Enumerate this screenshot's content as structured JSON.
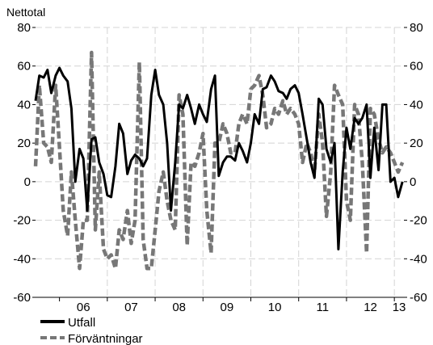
{
  "chart_data": {
    "type": "line",
    "ylabel": "Nettotal",
    "ylim": [
      -60,
      80
    ],
    "yticks": [
      "80",
      "60",
      "40",
      "20",
      "0",
      "-20",
      "-40",
      "-60"
    ],
    "xlim": [
      2005.5,
      2013.2
    ],
    "x_categories": [
      "06",
      "07",
      "08",
      "09",
      "10",
      "11",
      "12",
      "13"
    ],
    "grid": true,
    "legend_position": "bottom-left",
    "series": [
      {
        "name": "Utfall",
        "color": "#000000",
        "style": "solid",
        "x": [
          2005.5,
          2005.58,
          2005.67,
          2005.75,
          2005.83,
          2005.92,
          2006.0,
          2006.08,
          2006.17,
          2006.25,
          2006.33,
          2006.42,
          2006.5,
          2006.58,
          2006.67,
          2006.75,
          2006.83,
          2006.92,
          2007.0,
          2007.08,
          2007.17,
          2007.25,
          2007.33,
          2007.42,
          2007.5,
          2007.58,
          2007.67,
          2007.75,
          2007.83,
          2007.92,
          2008.0,
          2008.08,
          2008.17,
          2008.25,
          2008.33,
          2008.42,
          2008.5,
          2008.58,
          2008.67,
          2008.75,
          2008.83,
          2008.92,
          2009.0,
          2009.08,
          2009.17,
          2009.25,
          2009.33,
          2009.42,
          2009.5,
          2009.58,
          2009.67,
          2009.75,
          2009.83,
          2009.92,
          2010.0,
          2010.08,
          2010.17,
          2010.25,
          2010.33,
          2010.42,
          2010.5,
          2010.58,
          2010.67,
          2010.75,
          2010.83,
          2010.92,
          2011.0,
          2011.08,
          2011.17,
          2011.25,
          2011.33,
          2011.42,
          2011.5,
          2011.58,
          2011.67,
          2011.75,
          2011.83,
          2011.92,
          2012.0,
          2012.08,
          2012.17,
          2012.25,
          2012.33,
          2012.42,
          2012.5,
          2012.58,
          2012.67,
          2012.75,
          2012.83,
          2012.92,
          2013.0,
          2013.08,
          2013.17
        ],
        "values": [
          42,
          55,
          54,
          58,
          46,
          55,
          59,
          55,
          52,
          38,
          0,
          17,
          12,
          -15,
          22,
          23,
          10,
          4,
          -7,
          -8,
          8,
          30,
          25,
          4,
          11,
          14,
          12,
          8,
          12,
          45,
          58,
          45,
          40,
          20,
          -15,
          10,
          40,
          38,
          45,
          38,
          30,
          40,
          35,
          31,
          48,
          55,
          3,
          10,
          13,
          13,
          11,
          20,
          16,
          10,
          20,
          35,
          30,
          48,
          49,
          55,
          52,
          47,
          46,
          43,
          48,
          50,
          46,
          35,
          22,
          10,
          2,
          43,
          40,
          17,
          10,
          20,
          -35,
          5,
          28,
          17,
          33,
          30,
          33,
          40,
          2,
          28,
          6,
          40,
          40,
          0,
          2,
          -8,
          0
        ]
      },
      {
        "name": "Förväntningar",
        "color": "#777777",
        "style": "dashed",
        "x": [
          2005.5,
          2005.58,
          2005.67,
          2005.75,
          2005.83,
          2005.92,
          2006.0,
          2006.08,
          2006.17,
          2006.25,
          2006.33,
          2006.42,
          2006.5,
          2006.58,
          2006.67,
          2006.75,
          2006.83,
          2006.92,
          2007.0,
          2007.08,
          2007.17,
          2007.25,
          2007.33,
          2007.42,
          2007.5,
          2007.58,
          2007.67,
          2007.75,
          2007.83,
          2007.92,
          2008.0,
          2008.08,
          2008.17,
          2008.25,
          2008.33,
          2008.42,
          2008.5,
          2008.58,
          2008.67,
          2008.75,
          2008.83,
          2008.92,
          2009.0,
          2009.08,
          2009.17,
          2009.25,
          2009.33,
          2009.42,
          2009.5,
          2009.58,
          2009.67,
          2009.75,
          2009.83,
          2009.92,
          2010.0,
          2010.08,
          2010.17,
          2010.25,
          2010.33,
          2010.42,
          2010.5,
          2010.58,
          2010.67,
          2010.75,
          2010.83,
          2010.92,
          2011.0,
          2011.08,
          2011.17,
          2011.25,
          2011.33,
          2011.42,
          2011.5,
          2011.58,
          2011.67,
          2011.75,
          2011.83,
          2011.92,
          2012.0,
          2012.08,
          2012.17,
          2012.25,
          2012.33,
          2012.42,
          2012.5,
          2012.58,
          2012.67,
          2012.75,
          2012.83,
          2012.92,
          2013.0,
          2013.08,
          2013.17
        ],
        "values": [
          8,
          50,
          20,
          18,
          10,
          50,
          18,
          -15,
          -28,
          5,
          -20,
          -45,
          -20,
          -20,
          67,
          -25,
          5,
          -35,
          -40,
          -38,
          -45,
          -25,
          -30,
          -15,
          -32,
          -20,
          62,
          -30,
          -45,
          -45,
          -25,
          -5,
          5,
          -10,
          -20,
          -25,
          45,
          35,
          -33,
          10,
          8,
          15,
          25,
          -15,
          -37,
          20,
          20,
          30,
          25,
          15,
          15,
          30,
          35,
          30,
          48,
          50,
          55,
          45,
          28,
          30,
          38,
          35,
          42,
          35,
          38,
          35,
          30,
          10,
          20,
          15,
          5,
          35,
          20,
          -18,
          5,
          50,
          45,
          40,
          -10,
          -20,
          40,
          35,
          10,
          -37,
          38,
          35,
          22,
          15,
          18,
          15,
          10,
          5,
          10
        ]
      }
    ]
  }
}
